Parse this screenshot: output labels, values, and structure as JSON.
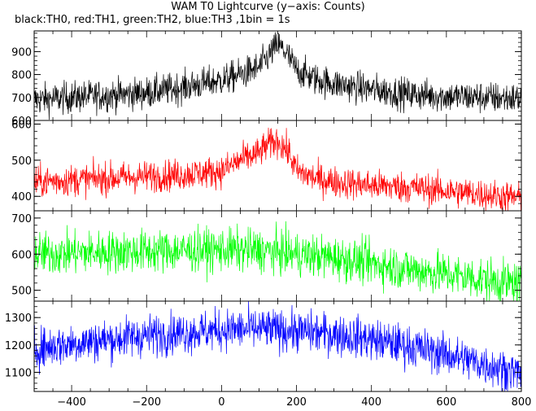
{
  "title": "WAM T0 Lightcurve (y−axis: Counts)",
  "subtitle": "black:TH0, red:TH1, green:TH2, blue:TH3 ,1bin = 1s",
  "chart_data": {
    "type": "line",
    "x_ticks": [
      -400,
      -200,
      0,
      200,
      400,
      600,
      800
    ],
    "xlim": [
      -500,
      800
    ],
    "bin_seconds": 1,
    "panels": [
      {
        "name": "TH0",
        "color": "#000000",
        "ylim": [
          600,
          990
        ],
        "y_ticks": [
          600,
          700,
          800,
          900
        ],
        "x": [
          -500,
          -400,
          -300,
          -200,
          -100,
          0,
          50,
          100,
          130,
          150,
          170,
          200,
          250,
          300,
          400,
          500,
          600,
          700,
          800
        ],
        "y": [
          690,
          700,
          710,
          720,
          745,
          775,
          800,
          830,
          890,
          930,
          900,
          820,
          780,
          760,
          735,
          715,
          705,
          700,
          695
        ],
        "noise": 35
      },
      {
        "name": "TH1",
        "color": "#ff0000",
        "ylim": [
          360,
          610
        ],
        "y_ticks": [
          400,
          500,
          600
        ],
        "x": [
          -500,
          -400,
          -300,
          -200,
          -100,
          0,
          50,
          100,
          120,
          150,
          180,
          200,
          250,
          300,
          400,
          500,
          600,
          700,
          800
        ],
        "y": [
          440,
          445,
          450,
          455,
          460,
          470,
          500,
          520,
          540,
          555,
          520,
          470,
          450,
          440,
          430,
          425,
          415,
          405,
          395
        ],
        "noise": 22
      },
      {
        "name": "TH2",
        "color": "#00ff00",
        "ylim": [
          470,
          720
        ],
        "y_ticks": [
          500,
          600,
          700
        ],
        "x": [
          -500,
          -400,
          -300,
          -200,
          -100,
          0,
          100,
          200,
          300,
          400,
          500,
          600,
          700,
          800
        ],
        "y": [
          600,
          603,
          606,
          608,
          610,
          612,
          610,
          600,
          590,
          575,
          558,
          545,
          530,
          515
        ],
        "noise": 30
      },
      {
        "name": "TH3",
        "color": "#0000ff",
        "ylim": [
          1030,
          1360
        ],
        "y_ticks": [
          1100,
          1200,
          1300
        ],
        "x": [
          -500,
          -400,
          -300,
          -200,
          -100,
          0,
          100,
          200,
          300,
          400,
          500,
          600,
          700,
          800
        ],
        "y": [
          1185,
          1205,
          1220,
          1235,
          1245,
          1255,
          1258,
          1250,
          1240,
          1220,
          1195,
          1165,
          1130,
          1095
        ],
        "noise": 38
      }
    ]
  }
}
